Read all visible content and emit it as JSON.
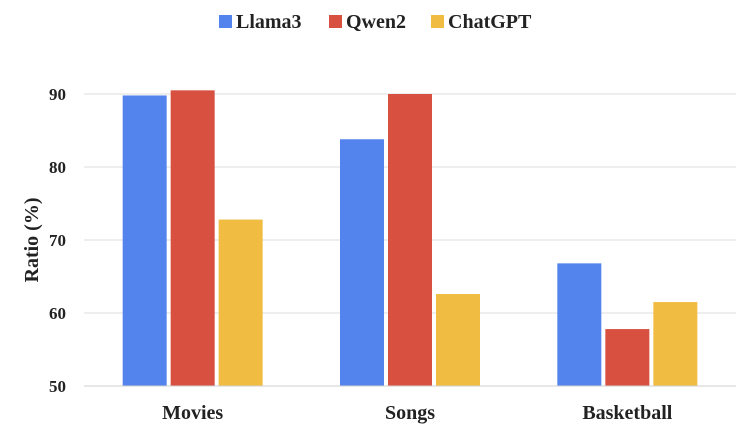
{
  "chart_data": {
    "type": "bar",
    "categories": [
      "Movies",
      "Songs",
      "Basketball"
    ],
    "series": [
      {
        "name": "Llama3",
        "color": "#5383EC",
        "values": [
          89.8,
          83.8,
          66.8
        ]
      },
      {
        "name": "Qwen2",
        "color": "#D85040",
        "values": [
          90.5,
          90.0,
          57.8
        ]
      },
      {
        "name": "ChatGPT",
        "color": "#F0BD42",
        "values": [
          72.8,
          62.6,
          61.5
        ]
      }
    ],
    "title": "",
    "xlabel": "",
    "ylabel": "Ratio (%)",
    "ylim": [
      50,
      90
    ],
    "yticks": [
      50,
      60,
      70,
      80,
      90
    ],
    "grid": true,
    "legend_position": "top-center"
  }
}
